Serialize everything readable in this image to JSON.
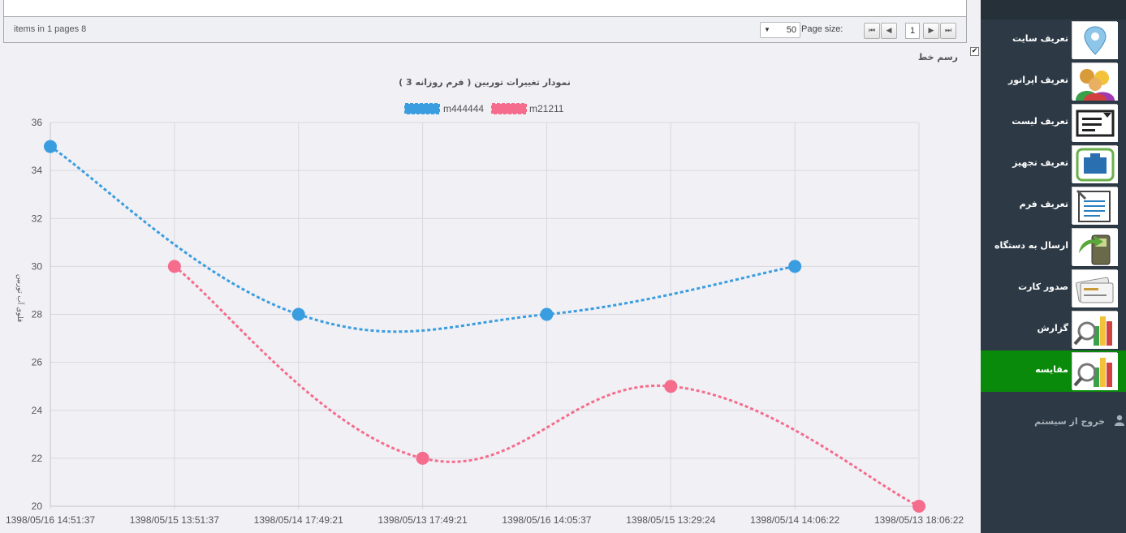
{
  "pager": {
    "info": "items in 1 pages 8",
    "page_size_label": "Page size:",
    "page_size_value": "50",
    "current_page": "1",
    "btn_first": "⏮",
    "btn_prev": "◀",
    "btn_next": "▶",
    "btn_last": "⏭"
  },
  "line_toggle": {
    "label": "رسم خط",
    "checked": "✔"
  },
  "sidebar": {
    "items": [
      {
        "label": "تعریف سایت",
        "icon": "map-pin-icon"
      },
      {
        "label": "تعریف اپراتور",
        "icon": "users-icon"
      },
      {
        "label": "تعریف لیست",
        "icon": "list-icon"
      },
      {
        "label": "تعریف تجهیز",
        "icon": "device-icon"
      },
      {
        "label": "تعریف فرم",
        "icon": "form-icon"
      },
      {
        "label": "ارسال به دستگاه",
        "icon": "handheld-send-icon"
      },
      {
        "label": "صدور کارت",
        "icon": "card-icon"
      },
      {
        "label": "گزارش",
        "icon": "report-chart-icon"
      },
      {
        "label": "مقایسه",
        "icon": "compare-chart-icon"
      }
    ],
    "active_index": 8,
    "logout": "خروج از سیستم"
  },
  "colors": {
    "blue": "#3a9de0",
    "pink": "#f56c8c",
    "active": "#0a8a0a",
    "sidebar": "#2d3a46"
  },
  "chart_data": {
    "type": "line",
    "title": "( نمودار تغییرات   توربین ( فرم روزانه 3",
    "ylabel": "فلوی آب توربین",
    "ylim": [
      20,
      36
    ],
    "yticks": [
      20,
      22,
      24,
      26,
      28,
      30,
      32,
      34,
      36
    ],
    "categories": [
      "1398/05/16 14:51:37",
      "1398/05/15 13:51:37",
      "1398/05/14 17:49:21",
      "1398/05/13 17:49:21",
      "1398/05/16 14:05:37",
      "1398/05/15 13:29:24",
      "1398/05/14 14:06:22",
      "1398/05/13 18:06:22"
    ],
    "series": [
      {
        "name": "m444444",
        "color": "#3a9de0",
        "values": [
          35,
          null,
          28,
          null,
          28,
          null,
          30,
          null
        ]
      },
      {
        "name": "m21211",
        "color": "#f56c8c",
        "values": [
          null,
          30,
          null,
          22,
          null,
          25,
          null,
          20
        ]
      }
    ],
    "legend": "top-center",
    "grid": true
  }
}
